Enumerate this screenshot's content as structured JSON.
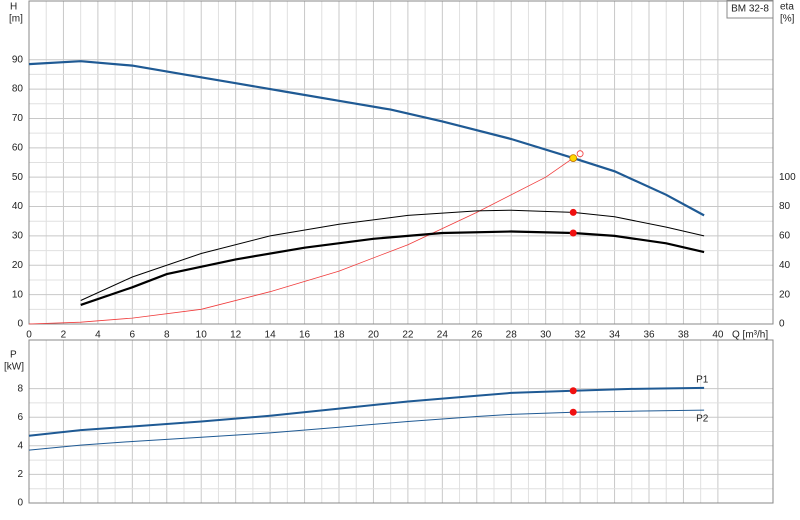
{
  "chart_data": [
    {
      "type": "line",
      "label": "BM 32-8",
      "ylabel": "H",
      "yunit": "[m]",
      "y2label": "eta",
      "y2unit": "[%]",
      "xlabel": "Q [m³/h]",
      "grid": true,
      "xlim": [
        0,
        43.2
      ],
      "xticks": [
        0,
        2,
        4,
        6,
        8,
        10,
        12,
        14,
        16,
        18,
        20,
        22,
        24,
        26,
        28,
        30,
        32,
        34,
        36,
        38,
        40
      ],
      "ylim": [
        0,
        110
      ],
      "yticks": [
        0,
        10,
        20,
        30,
        40,
        50,
        60,
        70,
        80,
        90
      ],
      "y2lim": [
        0,
        220
      ],
      "y2ticks": [
        0,
        20,
        40,
        60,
        80,
        100
      ],
      "series": [
        {
          "color": "#1f5a94",
          "width": 2.2,
          "x": [
            0,
            3,
            6,
            9,
            12,
            15,
            18,
            21,
            24,
            28,
            31.6,
            34,
            37,
            39.2
          ],
          "values": [
            88.5,
            89.5,
            88,
            85,
            82,
            79,
            76,
            73,
            69,
            63,
            56.5,
            52,
            44,
            37
          ]
        },
        {
          "color": "#f03c3c",
          "width": 0.8,
          "x": [
            0,
            3,
            6,
            10,
            14,
            18,
            22,
            26,
            30,
            31.6
          ],
          "values": [
            0,
            0.6,
            2,
            5,
            11,
            18,
            27,
            38,
            50,
            56.5
          ]
        },
        {
          "color": "#000000",
          "width": 1,
          "axis": "y2",
          "x": [
            3,
            6,
            10,
            14,
            18,
            22,
            26,
            28,
            31.6,
            34,
            37,
            39.2
          ],
          "values": [
            16,
            32,
            48,
            60,
            68,
            74,
            77,
            77.5,
            76,
            73,
            66,
            60
          ]
        },
        {
          "color": "#000000",
          "width": 2.2,
          "axis": "y2",
          "x": [
            3,
            6,
            8,
            12,
            16,
            20,
            24,
            28,
            31.6,
            34,
            37,
            39.2
          ],
          "values": [
            13,
            25,
            34,
            44,
            52,
            58,
            62,
            63,
            62,
            60,
            55,
            49
          ]
        }
      ],
      "points": [
        {
          "x": 32,
          "y": 58,
          "color": "#f03c3c",
          "hollow": true
        },
        {
          "x": 31.6,
          "y": 56.5,
          "color": "#ffd700"
        },
        {
          "x": 31.6,
          "y": 76,
          "axis": "y2",
          "color": "#f01010"
        },
        {
          "x": 31.6,
          "y": 62,
          "axis": "y2",
          "color": "#f01010"
        }
      ]
    },
    {
      "type": "line",
      "ylabel": "P",
      "yunit": "[kW]",
      "grid": true,
      "xlim": [
        0,
        43.2
      ],
      "ylim": [
        0,
        11.4
      ],
      "yticks": [
        0,
        2,
        4,
        6,
        8
      ],
      "series": [
        {
          "name": "P1",
          "color": "#1f5a94",
          "width": 2,
          "x": [
            0,
            3,
            6,
            10,
            14,
            18,
            22,
            26,
            28,
            31.6,
            35,
            39.2
          ],
          "values": [
            4.7,
            5.1,
            5.35,
            5.7,
            6.1,
            6.6,
            7.1,
            7.5,
            7.7,
            7.85,
            7.98,
            8.05
          ]
        },
        {
          "name": "P2",
          "color": "#1f5a94",
          "width": 1,
          "x": [
            0,
            3,
            6,
            10,
            14,
            18,
            22,
            26,
            28,
            31.6,
            35,
            39.2
          ],
          "values": [
            3.7,
            4.05,
            4.3,
            4.6,
            4.9,
            5.3,
            5.7,
            6.05,
            6.2,
            6.35,
            6.42,
            6.5
          ]
        }
      ],
      "points": [
        {
          "x": 31.6,
          "y": 7.85,
          "color": "#f01010"
        },
        {
          "x": 31.6,
          "y": 6.35,
          "color": "#f01010"
        }
      ]
    }
  ]
}
